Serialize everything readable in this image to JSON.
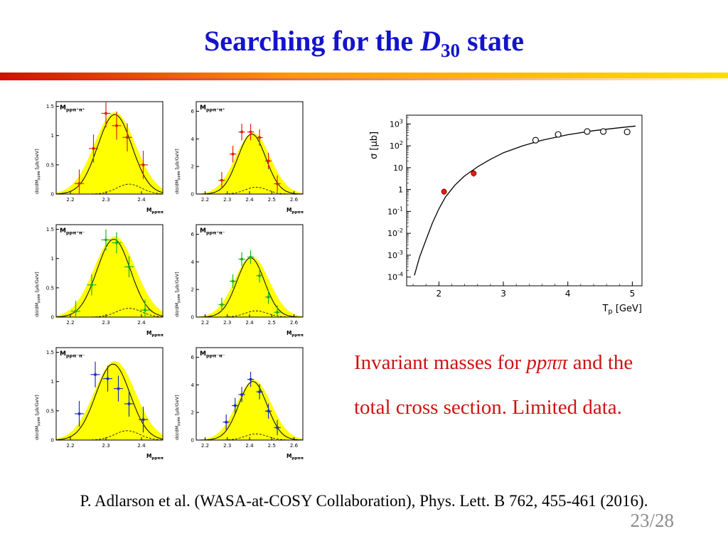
{
  "slide": {
    "title": {
      "prefix": "Searching for the ",
      "symbol": "D",
      "subscript": "30",
      "suffix": " state"
    },
    "caption": {
      "line1_prefix": "Invariant masses for ",
      "line1_italic": "ppππ",
      "line1_suffix": " and the",
      "line2": "total cross section. Limited data."
    },
    "citation": "P. Adlarson et al. (WASA-at-COSY Collaboration), Phys. Lett. B 762, 455-461 (2016).",
    "page_number": "23/28"
  },
  "colors": {
    "title": "#1414cc",
    "caption": "#cc1414",
    "bar_gradient_start": "#cc1100",
    "bar_gradient_mid": "#ff9900",
    "bar_gradient_end": "#ffdd00",
    "yellow_fill": "#ffff00",
    "red_series": "#e02010",
    "green_series": "#1db31d",
    "blue_series": "#2030c0"
  },
  "chart_data": [
    {
      "type": "area",
      "id": "mass-panel-pippipp-plusplus-a",
      "label_main": "M",
      "label_sub": "ppπ⁺π⁺",
      "ylabel_pre": "dσ/dM",
      "ylabel_sub": "ppππ",
      "ylabel_unit": " [μb/GeV]",
      "xlabel_main": "M",
      "xlabel_sub": "ppππ",
      "xlim": [
        2.16,
        2.46
      ],
      "ylim": [
        0,
        1.58
      ],
      "xticks": [
        2.2,
        2.3,
        2.4
      ],
      "yticks": [
        0,
        0.5,
        1,
        1.5
      ],
      "fill": {
        "center": 2.325,
        "sigma": 0.058,
        "amplitude": 1.4
      },
      "curve": {
        "center": 2.325,
        "sigma": 0.048,
        "amplitude": 1.36
      },
      "dashed": {
        "center": 2.365,
        "sigma": 0.035,
        "amplitude": 0.17
      },
      "series": "red_series",
      "points": [
        [
          2.225,
          0.18
        ],
        [
          2.265,
          0.78
        ],
        [
          2.3,
          1.38
        ],
        [
          2.33,
          1.17
        ],
        [
          2.36,
          0.97
        ],
        [
          2.405,
          0.5
        ]
      ],
      "xerr": 0.013,
      "yerr": 0.24
    },
    {
      "type": "area",
      "id": "mass-panel-pippipp-plusplus-b",
      "label_main": "M",
      "label_sub": "ppπ⁺π⁺",
      "ylabel_pre": "dσ/dM",
      "ylabel_sub": "ppππ",
      "ylabel_unit": " [μb/GeV]",
      "xlabel_main": "M",
      "xlabel_sub": "ppππ",
      "xlim": [
        2.16,
        2.64
      ],
      "ylim": [
        0,
        6.7
      ],
      "xticks": [
        2.2,
        2.3,
        2.4,
        2.5,
        2.6
      ],
      "yticks": [
        0,
        2,
        4,
        6
      ],
      "fill": {
        "center": 2.415,
        "sigma": 0.078,
        "amplitude": 4.45
      },
      "curve": {
        "center": 2.41,
        "sigma": 0.063,
        "amplitude": 4.35
      },
      "dashed": {
        "center": 2.43,
        "sigma": 0.05,
        "amplitude": 0.5
      },
      "series": "red_series",
      "points": [
        [
          2.275,
          1.0
        ],
        [
          2.325,
          2.9
        ],
        [
          2.365,
          4.5
        ],
        [
          2.405,
          4.5
        ],
        [
          2.445,
          4.1
        ],
        [
          2.485,
          2.4
        ],
        [
          2.525,
          0.75
        ]
      ],
      "xerr": 0.015,
      "yerr": 0.6
    },
    {
      "type": "area",
      "id": "mass-panel-pippipp-plusminus-a",
      "label_main": "M",
      "label_sub": "ppπ⁺π⁻",
      "ylabel_pre": "dσ/dM",
      "ylabel_sub": "ppππ",
      "ylabel_unit": " [μb/GeV]",
      "xlabel_main": "M",
      "xlabel_sub": "ppππ",
      "xlim": [
        2.16,
        2.46
      ],
      "ylim": [
        0,
        1.58
      ],
      "xticks": [
        2.2,
        2.3,
        2.4
      ],
      "yticks": [
        0,
        0.5,
        1,
        1.5
      ],
      "fill": {
        "center": 2.325,
        "sigma": 0.058,
        "amplitude": 1.38
      },
      "curve": {
        "center": 2.322,
        "sigma": 0.047,
        "amplitude": 1.33
      },
      "dashed": {
        "center": 2.365,
        "sigma": 0.035,
        "amplitude": 0.15
      },
      "series": "green_series",
      "points": [
        [
          2.215,
          0.1
        ],
        [
          2.26,
          0.55
        ],
        [
          2.3,
          1.32
        ],
        [
          2.33,
          1.27
        ],
        [
          2.365,
          0.86
        ],
        [
          2.41,
          0.12
        ]
      ],
      "xerr": 0.013,
      "yerr": 0.18
    },
    {
      "type": "area",
      "id": "mass-panel-pippipp-plusminus-b",
      "label_main": "M",
      "label_sub": "ppπ⁺π⁻",
      "ylabel_pre": "dσ/dM",
      "ylabel_sub": "ppππ",
      "ylabel_unit": " [μb/GeV]",
      "xlabel_main": "M",
      "xlabel_sub": "ppππ",
      "xlim": [
        2.16,
        2.64
      ],
      "ylim": [
        0,
        6.7
      ],
      "xticks": [
        2.2,
        2.3,
        2.4,
        2.5,
        2.6
      ],
      "yticks": [
        0,
        2,
        4,
        6
      ],
      "fill": {
        "center": 2.41,
        "sigma": 0.078,
        "amplitude": 4.4
      },
      "curve": {
        "center": 2.405,
        "sigma": 0.062,
        "amplitude": 4.3
      },
      "dashed": {
        "center": 2.43,
        "sigma": 0.05,
        "amplitude": 0.45
      },
      "series": "green_series",
      "points": [
        [
          2.275,
          0.9
        ],
        [
          2.325,
          2.6
        ],
        [
          2.365,
          4.2
        ],
        [
          2.405,
          4.35
        ],
        [
          2.445,
          3.0
        ],
        [
          2.485,
          1.45
        ],
        [
          2.525,
          0.35
        ]
      ],
      "xerr": 0.015,
      "yerr": 0.5
    },
    {
      "type": "area",
      "id": "mass-panel-pippipp-minusminus-a",
      "label_main": "M",
      "label_sub": "ppπ⁻π⁻",
      "ylabel_pre": "dσ/dM",
      "ylabel_sub": "ppππ",
      "ylabel_unit": " [μb/GeV]",
      "xlabel_main": "M",
      "xlabel_sub": "ppππ",
      "xlim": [
        2.16,
        2.46
      ],
      "ylim": [
        0,
        1.58
      ],
      "xticks": [
        2.2,
        2.3,
        2.4
      ],
      "yticks": [
        0,
        0.5,
        1,
        1.5
      ],
      "fill": {
        "center": 2.325,
        "sigma": 0.058,
        "amplitude": 1.35
      },
      "curve": {
        "center": 2.32,
        "sigma": 0.048,
        "amplitude": 1.3
      },
      "dashed": {
        "center": 2.36,
        "sigma": 0.035,
        "amplitude": 0.16
      },
      "series": "blue_series",
      "points": [
        [
          2.225,
          0.45
        ],
        [
          2.27,
          1.12
        ],
        [
          2.305,
          1.05
        ],
        [
          2.335,
          0.88
        ],
        [
          2.365,
          0.62
        ],
        [
          2.405,
          0.35
        ]
      ],
      "xerr": 0.013,
      "yerr": 0.22
    },
    {
      "type": "area",
      "id": "mass-panel-pippipp-minusminus-b",
      "label_main": "M",
      "label_sub": "ppπ⁻π⁻",
      "ylabel_pre": "dσ/dM",
      "ylabel_sub": "ppππ",
      "ylabel_unit": " [μb/GeV]",
      "xlabel_main": "M",
      "xlabel_sub": "ppππ",
      "xlim": [
        2.16,
        2.64
      ],
      "ylim": [
        0,
        6.7
      ],
      "xticks": [
        2.2,
        2.3,
        2.4,
        2.5,
        2.6
      ],
      "yticks": [
        0,
        2,
        4,
        6
      ],
      "fill": {
        "center": 2.42,
        "sigma": 0.078,
        "amplitude": 4.35
      },
      "curve": {
        "center": 2.415,
        "sigma": 0.063,
        "amplitude": 4.25
      },
      "dashed": {
        "center": 2.43,
        "sigma": 0.05,
        "amplitude": 0.45
      },
      "series": "blue_series",
      "points": [
        [
          2.295,
          1.3
        ],
        [
          2.335,
          2.5
        ],
        [
          2.365,
          3.3
        ],
        [
          2.405,
          4.4
        ],
        [
          2.445,
          3.5
        ],
        [
          2.485,
          2.1
        ],
        [
          2.525,
          0.9
        ]
      ],
      "xerr": 0.015,
      "yerr": 0.55
    },
    {
      "type": "line",
      "id": "total-cross-section",
      "ylabel": "σ [μb]",
      "xlabel_main": "T",
      "xlabel_sub": "p",
      "xlabel_unit": " [GeV]",
      "xlim": [
        1.5,
        5.15
      ],
      "xticks": [
        2,
        3,
        4,
        5
      ],
      "ylog_ticks": [
        3,
        2,
        1,
        0,
        -1,
        -2,
        -3,
        -4
      ],
      "ylim_log": [
        -4.4,
        3.4
      ],
      "curve": [
        [
          1.62,
          0.00012
        ],
        [
          1.7,
          0.0008
        ],
        [
          1.8,
          0.005
        ],
        [
          1.9,
          0.03
        ],
        [
          2.0,
          0.13
        ],
        [
          2.1,
          0.45
        ],
        [
          2.25,
          1.6
        ],
        [
          2.4,
          4.2
        ],
        [
          2.6,
          11
        ],
        [
          2.8,
          24
        ],
        [
          3.0,
          48
        ],
        [
          3.3,
          100
        ],
        [
          3.6,
          180
        ],
        [
          4.0,
          320
        ],
        [
          4.4,
          490
        ],
        [
          4.8,
          670
        ],
        [
          5.05,
          800
        ]
      ],
      "filled_points": [
        [
          2.08,
          0.8
        ],
        [
          2.54,
          5.5
        ]
      ],
      "open_points": [
        [
          3.5,
          180
        ],
        [
          3.85,
          330
        ],
        [
          4.3,
          450
        ],
        [
          4.55,
          450
        ],
        [
          4.92,
          430
        ]
      ]
    }
  ]
}
